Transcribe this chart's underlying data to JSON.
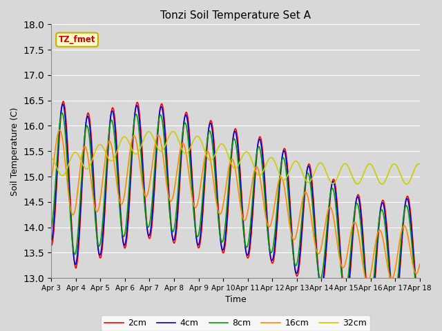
{
  "title": "Tonzi Soil Temperature Set A",
  "xlabel": "Time",
  "ylabel": "Soil Temperature (C)",
  "ylim": [
    13.0,
    18.0
  ],
  "yticks": [
    13.0,
    13.5,
    14.0,
    14.5,
    15.0,
    15.5,
    16.0,
    16.5,
    17.0,
    17.5,
    18.0
  ],
  "xtick_labels": [
    "Apr 3",
    "Apr 4",
    "Apr 5",
    "Apr 6",
    "Apr 7",
    "Apr 8",
    "Apr 9",
    "Apr 10",
    "Apr 11",
    "Apr 12",
    "Apr 13",
    "Apr 14",
    "Apr 15",
    "Apr 16",
    "Apr 17",
    "Apr 18"
  ],
  "series_labels": [
    "2cm",
    "4cm",
    "8cm",
    "16cm",
    "32cm"
  ],
  "series_colors": [
    "#ff0000",
    "#0000cc",
    "#009900",
    "#ff8800",
    "#cccc00"
  ],
  "line_widths": [
    1.2,
    1.2,
    1.2,
    1.2,
    1.2
  ],
  "bg_color": "#d8d8d8",
  "plot_bg_color": "#d8d8d8",
  "grid_color": "#ffffff",
  "annotation_text": "TZ_fmet",
  "annotation_bg": "#ffffcc",
  "annotation_border": "#ccaa00",
  "figsize": [
    6.4,
    4.8
  ],
  "dpi": 100
}
